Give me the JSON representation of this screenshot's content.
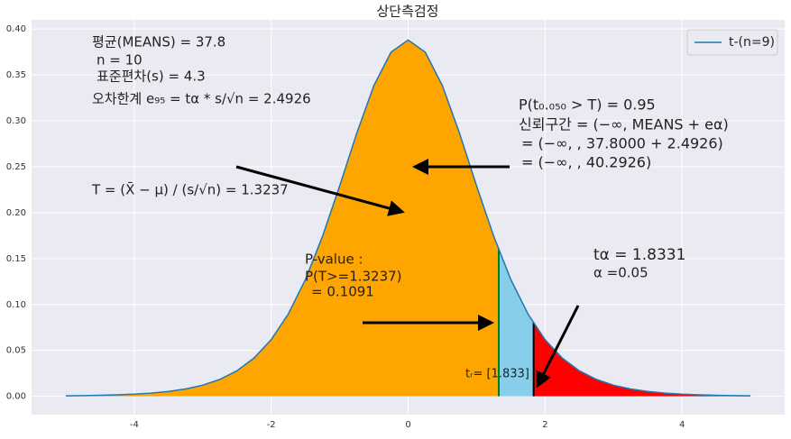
{
  "chart_data": {
    "type": "line",
    "title": "상단측검정",
    "x": [
      -5,
      -4.75,
      -4.5,
      -4.25,
      -4,
      -3.75,
      -3.5,
      -3.25,
      -3,
      -2.75,
      -2.5,
      -2.25,
      -2,
      -1.75,
      -1.5,
      -1.25,
      -1,
      -0.75,
      -0.5,
      -0.25,
      0,
      0.25,
      0.5,
      0.75,
      1,
      1.25,
      1.5,
      1.75,
      2,
      2.25,
      2.5,
      2.75,
      3,
      3.25,
      3.5,
      3.75,
      4,
      4.25,
      4.5,
      4.75,
      5
    ],
    "series": [
      {
        "name": "t-(n=9)",
        "color": "#1f77b4",
        "values": [
          0.0005,
          0.0007,
          0.0011,
          0.0016,
          0.0023,
          0.0035,
          0.0053,
          0.008,
          0.0121,
          0.0184,
          0.0278,
          0.0417,
          0.0617,
          0.0897,
          0.1272,
          0.1743,
          0.2291,
          0.2866,
          0.3384,
          0.3748,
          0.388,
          0.3748,
          0.3384,
          0.2866,
          0.2291,
          0.1743,
          0.1272,
          0.0897,
          0.0617,
          0.0417,
          0.0278,
          0.0184,
          0.0121,
          0.008,
          0.0053,
          0.0035,
          0.0023,
          0.0016,
          0.0011,
          0.0007,
          0.0005
        ]
      }
    ],
    "regions": [
      {
        "from": -5,
        "to": 1.3237,
        "color": "#ffa500"
      },
      {
        "from": 1.3237,
        "to": 1.8331,
        "color": "#87ceeb",
        "edge_color": "#008000"
      },
      {
        "from": 1.8331,
        "to": 5,
        "color": "#ff0000",
        "edge_color": "#000000"
      }
    ],
    "xlim": [
      -5.5,
      5.5
    ],
    "ylim": [
      -0.02,
      0.41
    ],
    "xticks": [
      -4,
      -2,
      0,
      2,
      4
    ],
    "yticks": [
      {
        "value": 0,
        "label": "0.00"
      },
      {
        "value": 0.05,
        "label": "0.05"
      },
      {
        "value": 0.1,
        "label": "0.10"
      },
      {
        "value": 0.15,
        "label": "0.15"
      },
      {
        "value": 0.2,
        "label": "0.20"
      },
      {
        "value": 0.25,
        "label": "0.25"
      },
      {
        "value": 0.3,
        "label": "0.30"
      },
      {
        "value": 0.35,
        "label": "0.35"
      },
      {
        "value": 0.4,
        "label": "0.40"
      }
    ],
    "grid": true,
    "legend": "upper right",
    "annotations": [
      "평균(MEANS) = 37.8",
      "n = 10",
      "표준편차(s) = 4.3",
      "오차한계 e₉₅ = tα * s/√n = 2.4926",
      "T = (X̄ − μ) / (s/√n) = 1.3237",
      "P(t₀.₀₅₀ > T) = 0.95",
      "신뢰구간 = (−∞, MEANS + eα)",
      "= (−∞, , 37.8000 + 2.4926)",
      "= (−∞, , 40.2926)",
      "P-value :",
      "P(T>=1.3237)",
      "= 0.1091",
      "tα = 1.8331",
      "α =0.05",
      "tᵣ= [1.833]"
    ]
  }
}
